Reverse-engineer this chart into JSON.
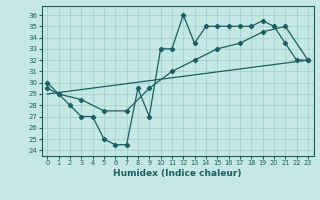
{
  "xlabel": "Humidex (Indice chaleur)",
  "xlim": [
    -0.5,
    23.5
  ],
  "ylim": [
    23.5,
    36.8
  ],
  "yticks": [
    24,
    25,
    26,
    27,
    28,
    29,
    30,
    31,
    32,
    33,
    34,
    35,
    36
  ],
  "xticks": [
    0,
    1,
    2,
    3,
    4,
    5,
    6,
    7,
    8,
    9,
    10,
    11,
    12,
    13,
    14,
    15,
    16,
    17,
    18,
    19,
    20,
    21,
    22,
    23
  ],
  "background_color": "#c5e8e4",
  "grid_color": "#9ecece",
  "line_color": "#1a6060",
  "line1_x": [
    0,
    1,
    2,
    3,
    4,
    5,
    6,
    7,
    8,
    9,
    10,
    11,
    12,
    13,
    14,
    15,
    16,
    17,
    18,
    19,
    20,
    21,
    22,
    23
  ],
  "line1_y": [
    30.0,
    29.0,
    28.0,
    27.0,
    27.0,
    25.0,
    24.5,
    24.5,
    29.5,
    27.0,
    33.0,
    33.0,
    36.0,
    33.5,
    35.0,
    35.0,
    35.0,
    35.0,
    35.0,
    35.5,
    35.0,
    33.5,
    32.0,
    32.0
  ],
  "line2_x": [
    0,
    1,
    3,
    5,
    7,
    9,
    11,
    13,
    15,
    17,
    19,
    21,
    23
  ],
  "line2_y": [
    29.5,
    29.0,
    28.5,
    27.5,
    27.5,
    29.5,
    31.0,
    32.0,
    33.0,
    33.5,
    34.5,
    35.0,
    32.0
  ],
  "line3_x": [
    0,
    23
  ],
  "line3_y": [
    29.0,
    32.0
  ]
}
